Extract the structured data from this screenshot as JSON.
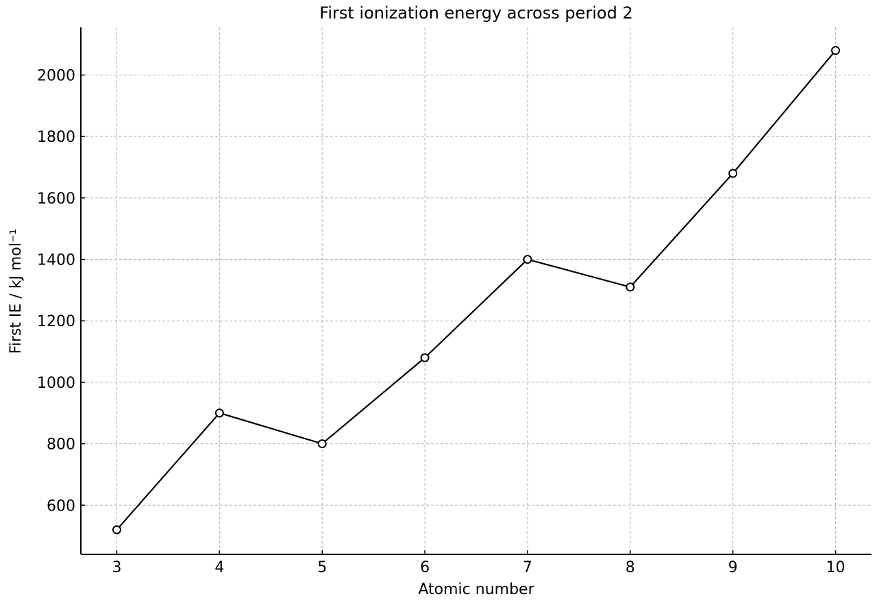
{
  "chart_data": {
    "type": "line",
    "title": "First ionization energy across period 2",
    "xlabel": "Atomic number",
    "ylabel": "First IE / kJ mol⁻¹",
    "x": [
      3,
      4,
      5,
      6,
      7,
      8,
      9,
      10
    ],
    "series": [
      {
        "values": [
          520,
          900,
          800,
          1080,
          1400,
          1310,
          1680,
          2080
        ],
        "color": "#000000",
        "marker": "open-circle"
      }
    ],
    "xticks": [
      3,
      4,
      5,
      6,
      7,
      8,
      9,
      10
    ],
    "yticks": [
      600,
      800,
      1000,
      1200,
      1400,
      1600,
      1800,
      2000
    ],
    "xlim": [
      2.65,
      10.35
    ],
    "ylim": [
      440,
      2155
    ],
    "grid": true,
    "legend": "none"
  }
}
